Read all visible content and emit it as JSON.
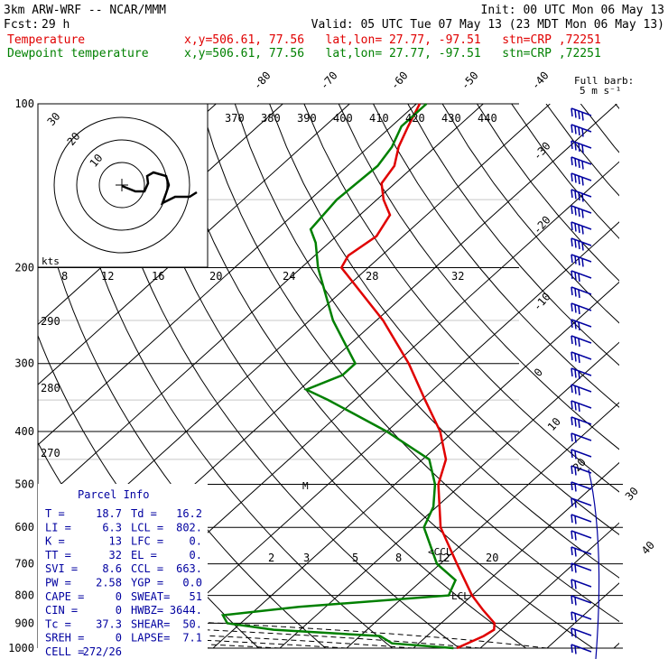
{
  "header": {
    "model": "3km ARW-WRF -- NCAR/MMM",
    "init": "Init: 00 UTC Mon 06 May 13",
    "fcst_label": "Fcst:",
    "fcst_value": "29 h",
    "valid": "Valid: 05 UTC Tue 07 May 13 (23 MDT Mon 06 May 13)"
  },
  "legend": [
    {
      "label": "Temperature",
      "info": "x,y=506.61, 77.56   lat,lon= 27.77, -97.51   stn=CRP ,72251",
      "color": "#e00000"
    },
    {
      "label": "Dewpoint temperature",
      "info": "x,y=506.61, 77.56   lat,lon= 27.77, -97.51   stn=CRP ,72251",
      "color": "#008000"
    }
  ],
  "barb_legend": {
    "line1": "Full barb:",
    "line2": "5 m s⁻¹"
  },
  "hodograph": {
    "kts_label": "kts",
    "ring_labels": [
      "10",
      "20",
      "30"
    ]
  },
  "parcel_info": {
    "title": "Parcel Info",
    "rows": [
      [
        "T  =",
        "18.7",
        "Td =",
        "16.2"
      ],
      [
        "LI =",
        "6.3",
        "LCL =",
        "802."
      ],
      [
        "K  =",
        "13",
        "LFC =",
        "0."
      ],
      [
        "TT =",
        "32",
        "EL  =",
        "0."
      ],
      [
        "SVI =",
        "8.6",
        "CCL =",
        "663."
      ],
      [
        "PW =",
        "2.58",
        "YGP =",
        "0.0"
      ],
      [
        "CAPE =",
        "0",
        "SWEAT=",
        "51"
      ],
      [
        "CIN =",
        "0",
        "HWBZ=",
        "3644."
      ],
      [
        "Tc =",
        "37.3",
        "SHEAR=",
        "50."
      ],
      [
        "SREH =",
        "0",
        "LAPSE=",
        "7.1"
      ],
      [
        "CELL =",
        "272/26",
        "",
        ""
      ]
    ]
  },
  "markers": {
    "lcl": "LCL",
    "ccl": "<CCL",
    "m": "M"
  },
  "chart_data": {
    "type": "line",
    "title": "Skew-T log-P sounding",
    "y_axis": {
      "label": "pressure (hPa)",
      "scale": "log",
      "range": [
        1000,
        100
      ],
      "ticks": [
        100,
        200,
        300,
        400,
        500,
        600,
        700,
        800,
        900,
        1000
      ]
    },
    "isotherm_labels": [
      -80,
      -70,
      -60,
      -50,
      -40,
      -30,
      -20,
      -10,
      0,
      10,
      20,
      30,
      40
    ],
    "theta_e_labels": [
      370,
      380,
      390,
      400,
      410,
      420,
      430,
      440
    ],
    "theta_e_low_labels": [
      290,
      280,
      270
    ],
    "mixing_ratio_labels": [
      "2",
      "3",
      "5",
      "8",
      "12",
      "20"
    ],
    "hodo_isotach_labels": [
      "8",
      "12",
      "16",
      "20",
      "24",
      "28",
      "32"
    ],
    "series": [
      {
        "name": "Temperature",
        "color": "#e00000",
        "points": [
          [
            1000,
            26.5
          ],
          [
            950,
            28.5
          ],
          [
            925,
            29.0
          ],
          [
            900,
            28.0
          ],
          [
            850,
            24.0
          ],
          [
            800,
            20.0
          ],
          [
            700,
            12.5
          ],
          [
            600,
            4.0
          ],
          [
            500,
            -3.5
          ],
          [
            450,
            -6.5
          ],
          [
            400,
            -12.0
          ],
          [
            350,
            -19.5
          ],
          [
            300,
            -28.0
          ],
          [
            250,
            -39.0
          ],
          [
            200,
            -54.0
          ],
          [
            190,
            -55.0
          ],
          [
            175,
            -54.0
          ],
          [
            160,
            -55.5
          ],
          [
            150,
            -59.0
          ],
          [
            140,
            -62.0
          ],
          [
            130,
            -63.0
          ],
          [
            120,
            -65.5
          ],
          [
            110,
            -67.5
          ],
          [
            100,
            -69.5
          ]
        ]
      },
      {
        "name": "Dewpoint temperature",
        "color": "#008000",
        "points": [
          [
            1000,
            26.0
          ],
          [
            980,
            16.0
          ],
          [
            950,
            13.0
          ],
          [
            925,
            -4.0
          ],
          [
            900,
            -12.0
          ],
          [
            870,
            -14.0
          ],
          [
            840,
            -4.0
          ],
          [
            800,
            16.5
          ],
          [
            750,
            15.0
          ],
          [
            700,
            9.5
          ],
          [
            600,
            1.5
          ],
          [
            550,
            -0.5
          ],
          [
            500,
            -4.0
          ],
          [
            450,
            -9.0
          ],
          [
            400,
            -20.0
          ],
          [
            350,
            -34.0
          ],
          [
            335,
            -39.0
          ],
          [
            315,
            -36.0
          ],
          [
            300,
            -36.0
          ],
          [
            250,
            -46.5
          ],
          [
            200,
            -57.5
          ],
          [
            180,
            -62.0
          ],
          [
            170,
            -65.0
          ],
          [
            150,
            -66.0
          ],
          [
            130,
            -65.5
          ],
          [
            120,
            -66.5
          ],
          [
            110,
            -68.5
          ],
          [
            100,
            -68.5
          ]
        ]
      }
    ]
  },
  "colors": {
    "temperature": "#e00000",
    "dewpoint": "#008000",
    "wind_barbs": "#0000a0",
    "grid": "#000000"
  }
}
